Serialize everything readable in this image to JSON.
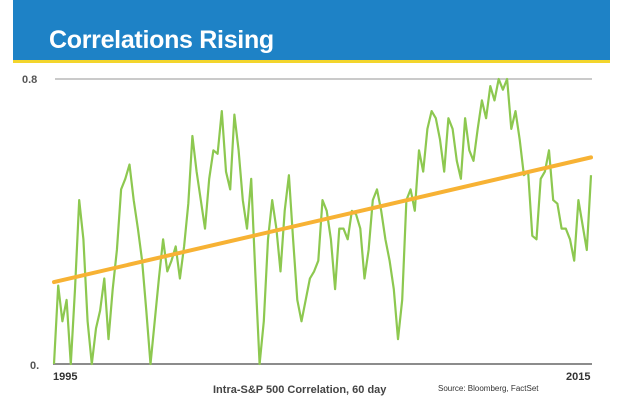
{
  "header": {
    "title": "Correlations Rising"
  },
  "colors": {
    "header_bg": "#1e82c6",
    "header_border": "#f3d52c",
    "series": "#8dc850",
    "trend": "#f7b234",
    "axis": "#666666"
  },
  "chart_data": {
    "type": "line",
    "title": "Correlations Rising",
    "xlabel": "Intra-S&P 500 Correlation, 60 day",
    "ylabel": "",
    "source": "Source: Bloomberg, FactSet",
    "xlim": [
      1995,
      2015
    ],
    "ylim": [
      0,
      0.8
    ],
    "x_tick_labels": [
      "1995",
      "2015"
    ],
    "y_tick_labels": [
      "0.",
      "0.8"
    ],
    "grid": false,
    "series": [
      {
        "name": "Intra-S&P 500 Correlation, 60 day",
        "values": [
          0,
          0.22,
          0.12,
          0.18,
          0,
          0.21,
          0.46,
          0.35,
          0.12,
          0,
          0.1,
          0.15,
          0.24,
          0.07,
          0.21,
          0.32,
          0.49,
          0.52,
          0.56,
          0.46,
          0.38,
          0.29,
          0.15,
          0,
          0.12,
          0.24,
          0.35,
          0.26,
          0.29,
          0.33,
          0.24,
          0.33,
          0.45,
          0.64,
          0.54,
          0.46,
          0.38,
          0.52,
          0.6,
          0.59,
          0.71,
          0.54,
          0.49,
          0.7,
          0.6,
          0.46,
          0.38,
          0.52,
          0.25,
          0,
          0.12,
          0.35,
          0.46,
          0.38,
          0.26,
          0.43,
          0.53,
          0.35,
          0.18,
          0.12,
          0.18,
          0.24,
          0.26,
          0.29,
          0.46,
          0.43,
          0.35,
          0.21,
          0.38,
          0.38,
          0.35,
          0.43,
          0.42,
          0.38,
          0.24,
          0.32,
          0.46,
          0.49,
          0.43,
          0.35,
          0.29,
          0.21,
          0.07,
          0.18,
          0.46,
          0.49,
          0.43,
          0.6,
          0.54,
          0.66,
          0.71,
          0.69,
          0.63,
          0.54,
          0.69,
          0.66,
          0.57,
          0.52,
          0.69,
          0.6,
          0.57,
          0.66,
          0.74,
          0.69,
          0.78,
          0.74,
          0.8,
          0.77,
          0.8,
          0.66,
          0.71,
          0.63,
          0.53,
          0.54,
          0.36,
          0.35,
          0.52,
          0.54,
          0.6,
          0.46,
          0.45,
          0.38,
          0.38,
          0.35,
          0.29,
          0.46,
          0.39,
          0.32,
          0.53
        ]
      },
      {
        "name": "Trend",
        "type": "linear",
        "x": [
          1995,
          2015
        ],
        "values": [
          0.23,
          0.58
        ]
      }
    ]
  }
}
